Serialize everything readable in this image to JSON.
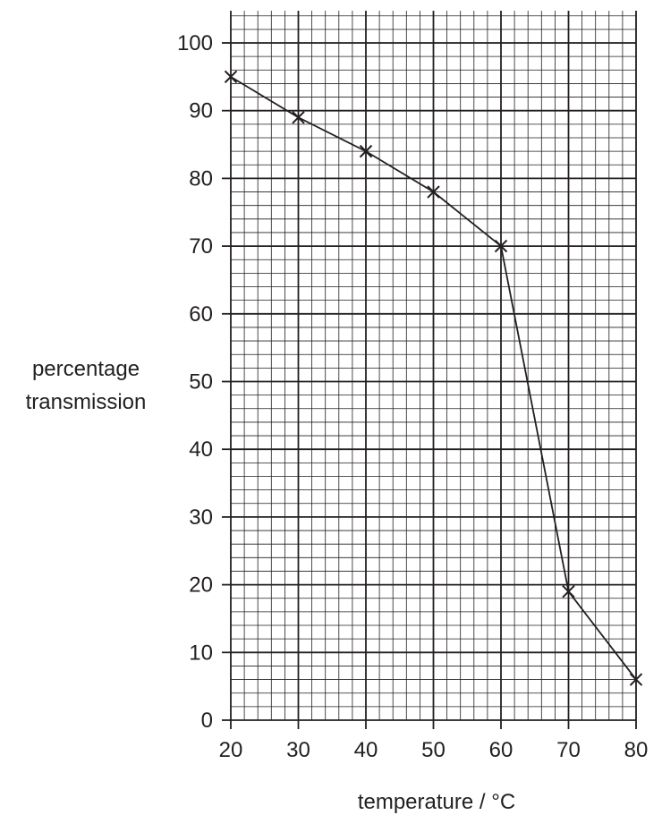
{
  "chart_data": {
    "type": "line",
    "title": "",
    "xlabel": "temperature / °C",
    "ylabel_lines": [
      "percentage",
      "transmission"
    ],
    "xlim": [
      20,
      80
    ],
    "ylim": [
      0,
      100
    ],
    "x_ticks": [
      20,
      30,
      40,
      50,
      60,
      70,
      80
    ],
    "y_ticks": [
      0,
      10,
      20,
      30,
      40,
      50,
      60,
      70,
      80,
      90,
      100
    ],
    "grid": true,
    "marker": "x",
    "series": [
      {
        "x": [
          20,
          30,
          40,
          50,
          60,
          70,
          80
        ],
        "y": [
          95,
          89,
          84,
          78,
          70,
          19,
          6
        ]
      }
    ],
    "line_color": "#231f20",
    "grid_color": "#231f20"
  }
}
